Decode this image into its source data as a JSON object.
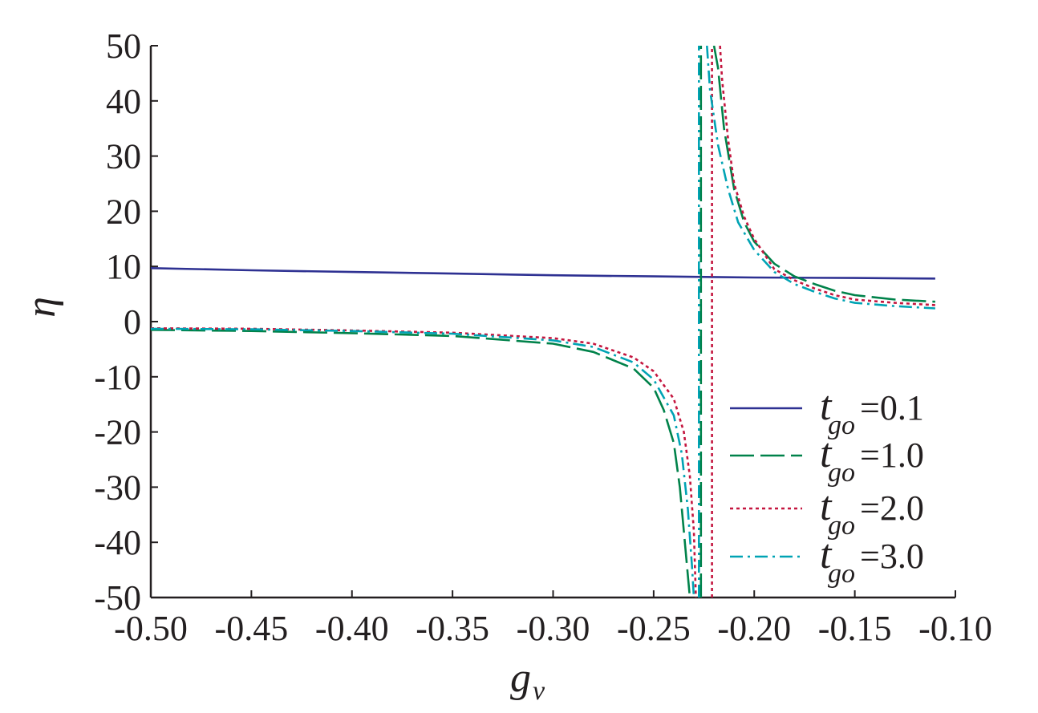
{
  "chart_data": {
    "type": "line",
    "xlabel": "g",
    "xlabel_sub": "v",
    "ylabel": "η",
    "xlim": [
      -0.5,
      -0.1
    ],
    "ylim": [
      -50,
      50
    ],
    "x_ticks": [
      "-0.50",
      "-0.45",
      "-0.40",
      "-0.35",
      "-0.30",
      "-0.25",
      "-0.20",
      "-0.15",
      "-0.10"
    ],
    "y_ticks": [
      "50",
      "40",
      "30",
      "20",
      "10",
      "0",
      "-10",
      "-20",
      "-30",
      "-40",
      "-50"
    ],
    "grid": false,
    "legend_position": "bottom-right",
    "series": [
      {
        "name": "=0.1",
        "legend_prefix": "t",
        "legend_sub": "go",
        "color": "#2e3192",
        "dash": "solid",
        "segments": [
          [
            [
              -0.5,
              9.7
            ],
            [
              -0.45,
              9.3
            ],
            [
              -0.4,
              9.0
            ],
            [
              -0.35,
              8.7
            ],
            [
              -0.3,
              8.4
            ],
            [
              -0.25,
              8.2
            ],
            [
              -0.2,
              8.0
            ],
            [
              -0.15,
              7.9
            ],
            [
              -0.11,
              7.8
            ]
          ]
        ]
      },
      {
        "name": "=1.0",
        "legend_prefix": "t",
        "legend_sub": "go",
        "color": "#00824a",
        "dash": "long-dash",
        "segments": [
          [
            [
              -0.5,
              -1.5
            ],
            [
              -0.45,
              -1.7
            ],
            [
              -0.4,
              -2.1
            ],
            [
              -0.35,
              -2.6
            ],
            [
              -0.3,
              -4.0
            ],
            [
              -0.28,
              -5.5
            ],
            [
              -0.26,
              -8.5
            ],
            [
              -0.25,
              -12
            ],
            [
              -0.245,
              -16
            ],
            [
              -0.24,
              -22
            ],
            [
              -0.237,
              -30
            ],
            [
              -0.235,
              -38
            ],
            [
              -0.233,
              -46
            ],
            [
              -0.232,
              -50
            ]
          ],
          [
            [
              -0.2265,
              -50
            ],
            [
              -0.2265,
              50
            ]
          ],
          [
            [
              -0.22,
              50
            ],
            [
              -0.218,
              46
            ],
            [
              -0.215,
              35
            ],
            [
              -0.21,
              24
            ],
            [
              -0.205,
              18
            ],
            [
              -0.2,
              14.5
            ],
            [
              -0.19,
              10.5
            ],
            [
              -0.18,
              8.2
            ],
            [
              -0.17,
              6.8
            ],
            [
              -0.16,
              5.6
            ],
            [
              -0.15,
              4.8
            ],
            [
              -0.13,
              4.0
            ],
            [
              -0.11,
              3.6
            ]
          ]
        ]
      },
      {
        "name": "=2.0",
        "legend_prefix": "t",
        "legend_sub": "go",
        "color": "#c4163f",
        "dash": "dotted",
        "segments": [
          [
            [
              -0.5,
              -1.2
            ],
            [
              -0.45,
              -1.3
            ],
            [
              -0.4,
              -1.6
            ],
            [
              -0.35,
              -2.0
            ],
            [
              -0.3,
              -3.0
            ],
            [
              -0.28,
              -4.0
            ],
            [
              -0.26,
              -6.5
            ],
            [
              -0.25,
              -9.0
            ],
            [
              -0.24,
              -14
            ],
            [
              -0.235,
              -20
            ],
            [
              -0.232,
              -28
            ],
            [
              -0.23,
              -38
            ],
            [
              -0.229,
              -50
            ]
          ],
          [
            [
              -0.221,
              -50
            ],
            [
              -0.221,
              50
            ]
          ],
          [
            [
              -0.217,
              50
            ],
            [
              -0.216,
              44
            ],
            [
              -0.213,
              33
            ],
            [
              -0.21,
              25
            ],
            [
              -0.205,
              19
            ],
            [
              -0.2,
              15
            ],
            [
              -0.19,
              9.5
            ],
            [
              -0.18,
              7.5
            ],
            [
              -0.17,
              6.0
            ],
            [
              -0.16,
              4.8
            ],
            [
              -0.15,
              4.0
            ],
            [
              -0.13,
              3.4
            ],
            [
              -0.11,
              3.0
            ]
          ]
        ]
      },
      {
        "name": "=3.0",
        "legend_prefix": "t",
        "legend_sub": "go",
        "color": "#00a3b4",
        "dash": "dash-dot",
        "segments": [
          [
            [
              -0.5,
              -1.3
            ],
            [
              -0.45,
              -1.4
            ],
            [
              -0.4,
              -1.7
            ],
            [
              -0.35,
              -2.2
            ],
            [
              -0.3,
              -3.4
            ],
            [
              -0.28,
              -4.6
            ],
            [
              -0.26,
              -7.4
            ],
            [
              -0.25,
              -10.5
            ],
            [
              -0.24,
              -17
            ],
            [
              -0.236,
              -24
            ],
            [
              -0.233,
              -34
            ],
            [
              -0.231,
              -44
            ],
            [
              -0.23,
              -50
            ]
          ],
          [
            [
              -0.2275,
              -50
            ],
            [
              -0.2275,
              50
            ]
          ],
          [
            [
              -0.2235,
              50
            ],
            [
              -0.222,
              42
            ],
            [
              -0.218,
              32
            ],
            [
              -0.213,
              24
            ],
            [
              -0.208,
              18
            ],
            [
              -0.2,
              13
            ],
            [
              -0.19,
              9.0
            ],
            [
              -0.18,
              6.8
            ],
            [
              -0.17,
              5.4
            ],
            [
              -0.16,
              4.2
            ],
            [
              -0.15,
              3.4
            ],
            [
              -0.13,
              2.8
            ],
            [
              -0.11,
              2.4
            ]
          ]
        ]
      }
    ]
  }
}
